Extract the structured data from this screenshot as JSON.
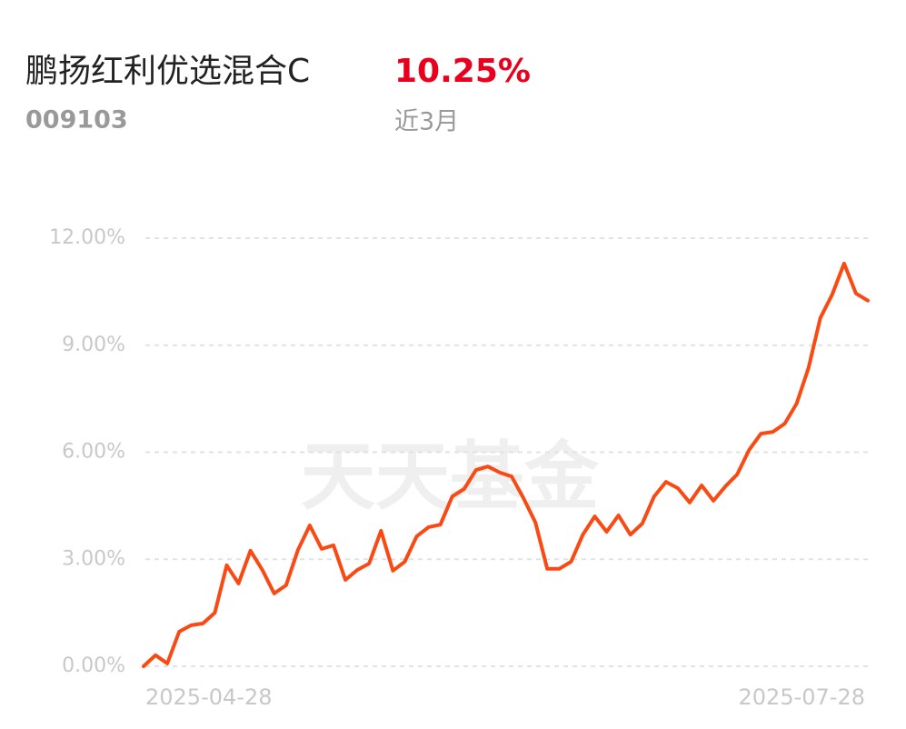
{
  "chart_data": {
    "type": "line",
    "title": "鹏扬红利优选混合C",
    "return_label": "10.25%",
    "fund_code": "009103",
    "period": "近3月",
    "watermark": "天天基金",
    "categories": [
      "2025-04-28",
      null,
      null,
      null,
      null,
      null,
      null,
      null,
      null,
      null,
      null,
      null,
      null,
      null,
      null,
      null,
      null,
      null,
      null,
      null,
      null,
      null,
      null,
      null,
      null,
      null,
      null,
      null,
      null,
      null,
      null,
      null,
      null,
      null,
      null,
      null,
      null,
      null,
      null,
      null,
      null,
      null,
      null,
      null,
      null,
      null,
      null,
      null,
      null,
      null,
      null,
      null,
      null,
      null,
      null,
      null,
      null,
      null,
      null,
      null,
      null,
      "2025-07-28"
    ],
    "series": [
      {
        "name": null,
        "color": "#fa4a14",
        "values": [
          0,
          0.31,
          0.08,
          0.97,
          1.15,
          1.2,
          1.5,
          2.83,
          2.32,
          3.24,
          2.7,
          2.04,
          2.27,
          3.26,
          3.95,
          3.29,
          3.39,
          2.42,
          2.7,
          2.88,
          3.8,
          2.68,
          2.93,
          3.64,
          3.9,
          3.97,
          4.76,
          4.97,
          5.5,
          5.6,
          5.43,
          5.32,
          4.71,
          4.03,
          2.73,
          2.73,
          2.93,
          3.69,
          4.2,
          3.77,
          4.23,
          3.69,
          4.0,
          4.76,
          5.17,
          4.99,
          4.59,
          5.07,
          4.64,
          5.04,
          5.38,
          6.06,
          6.52,
          6.57,
          6.8,
          7.36,
          8.36,
          9.76,
          10.42,
          11.29,
          10.45,
          10.25
        ]
      }
    ],
    "ylim": [
      0,
      12
    ],
    "yticks": [
      {
        "value": 0,
        "label": "0.00%"
      },
      {
        "value": 3,
        "label": "3.00%"
      },
      {
        "value": 6,
        "label": "6.00%"
      },
      {
        "value": 9,
        "label": "9.00%"
      },
      {
        "value": 12,
        "label": "12.00%"
      }
    ],
    "grid": true
  }
}
